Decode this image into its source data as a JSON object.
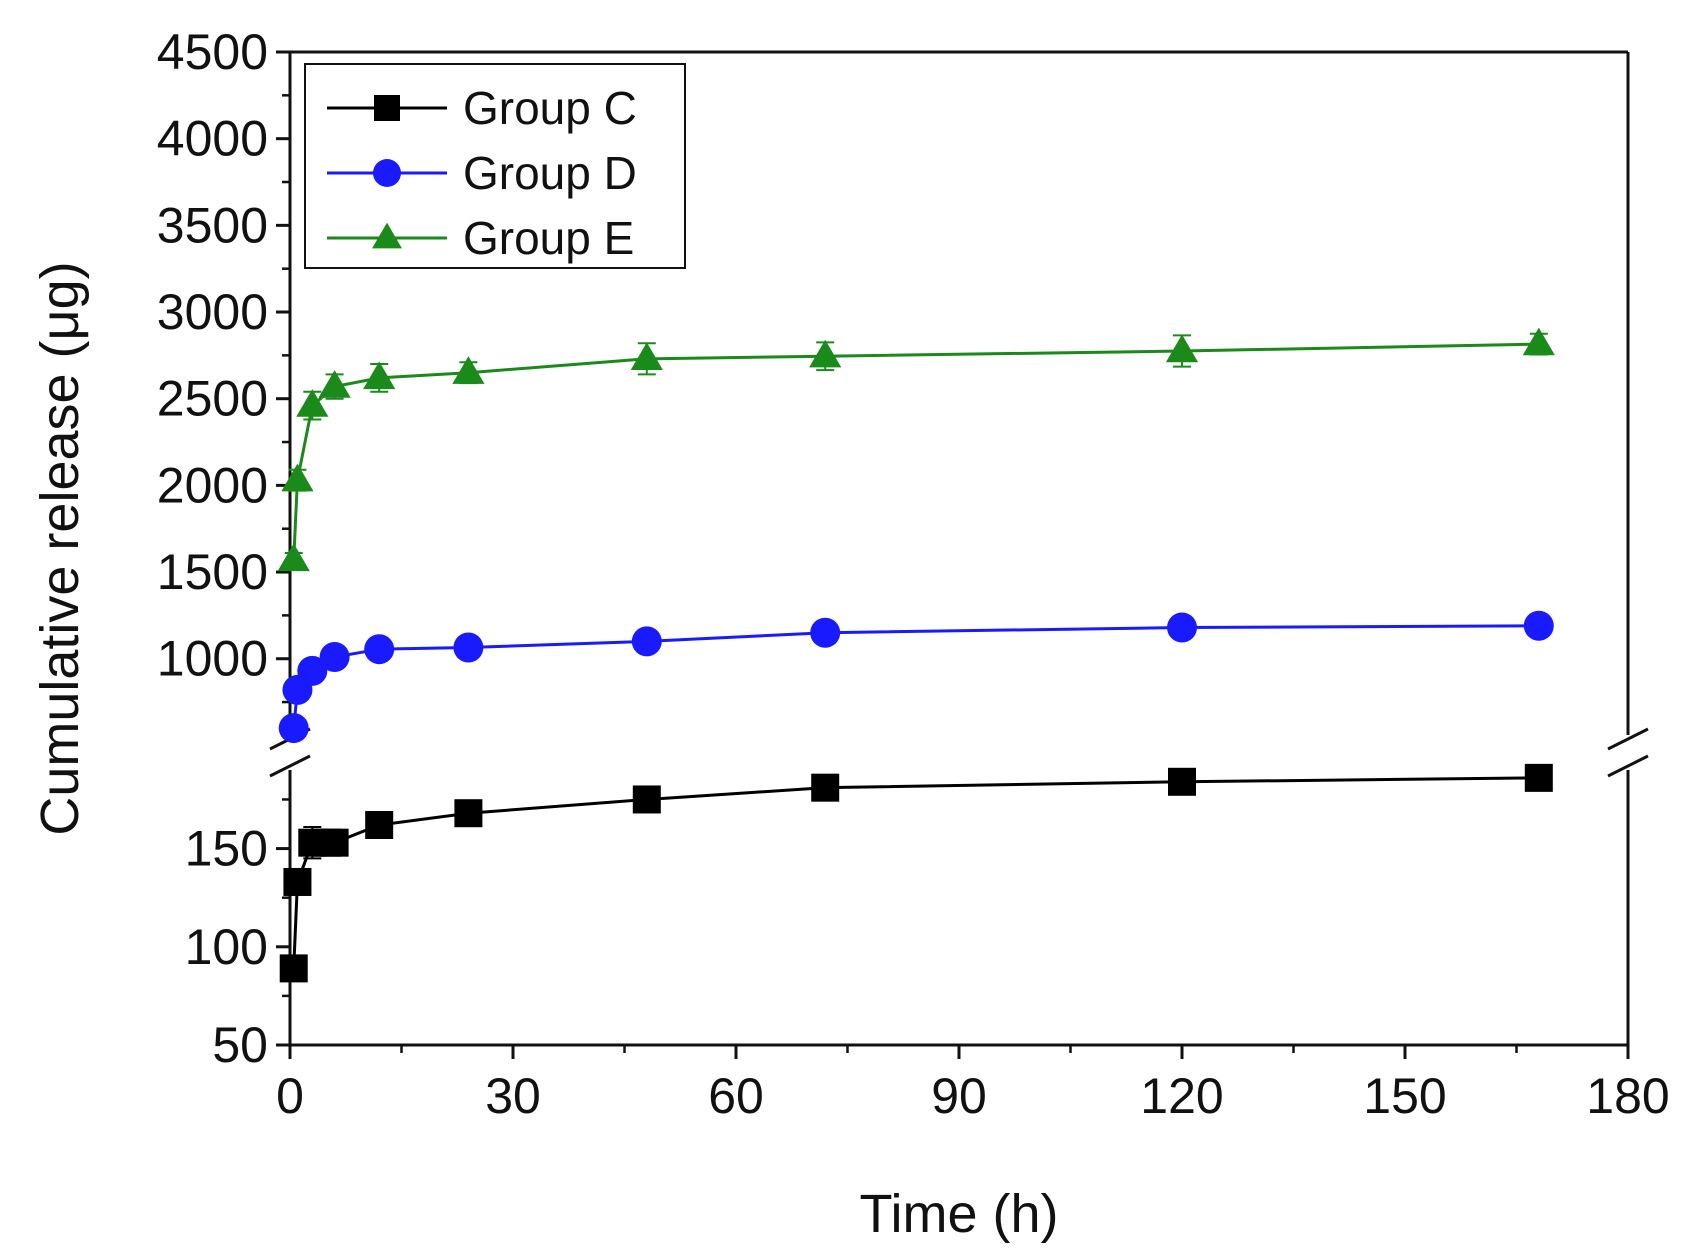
{
  "chart_data": {
    "type": "line",
    "title": "",
    "xlabel": "Time (h)",
    "ylabel": "Cumulative release  (μg)",
    "xlim": [
      0,
      180
    ],
    "x_ticks": [
      0,
      30,
      60,
      90,
      120,
      150,
      180
    ],
    "y_axis_broken": true,
    "y_segments": [
      {
        "name": "lower",
        "ylim": [
          50,
          190
        ],
        "ticks": [
          50,
          100,
          150
        ]
      },
      {
        "name": "upper",
        "ylim": [
          560,
          4500
        ],
        "ticks": [
          1000,
          1500,
          2000,
          2500,
          3000,
          3500,
          4000,
          4500
        ]
      }
    ],
    "legend": {
      "position": "top-left"
    },
    "series": [
      {
        "name": "Group C",
        "segment": "lower",
        "color": "#000000",
        "marker": "square",
        "x": [
          0.5,
          1,
          3,
          5,
          6,
          12,
          24,
          48,
          72,
          120,
          168
        ],
        "y": [
          89,
          133,
          153,
          153,
          153,
          162,
          168,
          175,
          181,
          184,
          186
        ],
        "err": [
          3,
          4,
          8,
          3,
          3,
          3,
          3,
          3,
          3,
          3,
          3
        ]
      },
      {
        "name": "Group D",
        "segment": "upper",
        "color": "#1a1aff",
        "marker": "circle",
        "x": [
          0.5,
          1,
          3,
          6,
          12,
          24,
          48,
          72,
          120,
          168
        ],
        "y": [
          600,
          820,
          930,
          1010,
          1055,
          1065,
          1100,
          1150,
          1180,
          1190
        ],
        "err": [
          20,
          25,
          25,
          20,
          20,
          20,
          20,
          20,
          20,
          20
        ]
      },
      {
        "name": "Group E",
        "segment": "upper",
        "color": "#1a8a1a",
        "marker": "triangle",
        "x": [
          0.5,
          1,
          3,
          6,
          12,
          24,
          48,
          72,
          120,
          168
        ],
        "y": [
          1570,
          2030,
          2460,
          2570,
          2620,
          2650,
          2730,
          2745,
          2775,
          2815
        ],
        "err": [
          40,
          60,
          80,
          70,
          80,
          60,
          90,
          80,
          90,
          60
        ]
      }
    ]
  }
}
